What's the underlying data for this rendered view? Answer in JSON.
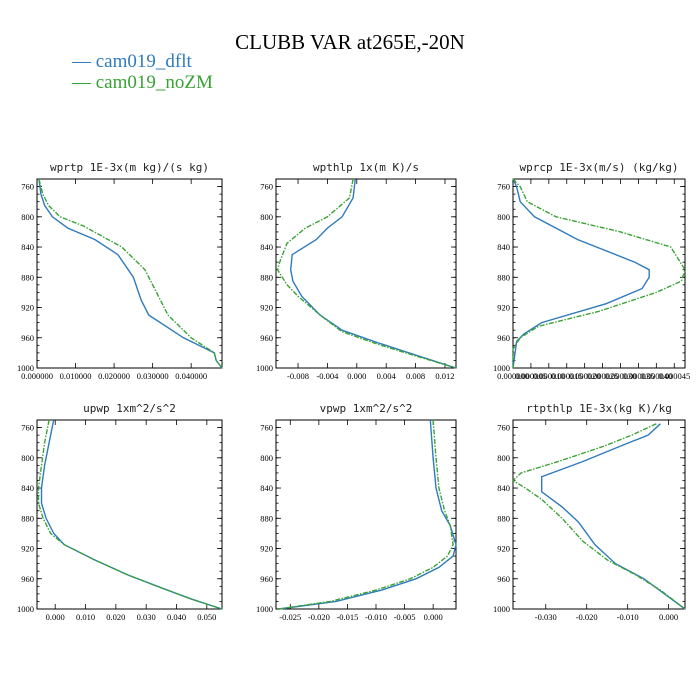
{
  "title": "CLUBB VAR at265E,-20N",
  "legend": [
    {
      "name": "cam019_dflt",
      "color": "#2f7bbd"
    },
    {
      "name": "cam019_noZM",
      "color": "#3aa335"
    }
  ],
  "chart_data": [
    {
      "type": "line",
      "title": "wprtp  1E-3x(m kg)/(s kg)",
      "xlim": [
        0.0,
        0.048
      ],
      "ylim": [
        1000,
        750
      ],
      "y_inverted": true,
      "xticks": [
        0.0,
        0.01,
        0.02,
        0.03,
        0.04
      ],
      "xtick_labels": [
        "0.000000",
        "0.010000",
        "0.020000",
        "0.030000",
        "0.040000"
      ],
      "yticks": [
        760,
        800,
        840,
        880,
        920,
        960,
        1000
      ],
      "series": [
        {
          "name": "cam019_dflt",
          "points": [
            [
              0.0005,
              750
            ],
            [
              0.001,
              770
            ],
            [
              0.002,
              785
            ],
            [
              0.004,
              800
            ],
            [
              0.008,
              815
            ],
            [
              0.015,
              830
            ],
            [
              0.021,
              850
            ],
            [
              0.025,
              880
            ],
            [
              0.027,
              910
            ],
            [
              0.029,
              930
            ],
            [
              0.038,
              960
            ],
            [
              0.046,
              980
            ],
            [
              0.0465,
              990
            ],
            [
              0.048,
              1000
            ]
          ]
        },
        {
          "name": "cam019_noZM",
          "points": [
            [
              0.0005,
              750
            ],
            [
              0.0015,
              770
            ],
            [
              0.003,
              785
            ],
            [
              0.006,
              800
            ],
            [
              0.012,
              812
            ],
            [
              0.022,
              840
            ],
            [
              0.028,
              870
            ],
            [
              0.031,
              900
            ],
            [
              0.034,
              930
            ],
            [
              0.04,
              960
            ],
            [
              0.046,
              980
            ],
            [
              0.0465,
              990
            ],
            [
              0.048,
              1000
            ]
          ]
        }
      ]
    },
    {
      "type": "line",
      "title": "wpthlp  1x(m K)/s",
      "xlim": [
        -0.011,
        0.0135
      ],
      "ylim": [
        1000,
        750
      ],
      "y_inverted": true,
      "xticks": [
        -0.008,
        -0.004,
        0.0,
        0.004,
        0.008,
        0.012
      ],
      "xtick_labels": [
        "-0.008",
        "-0.004",
        "0.000",
        "0.004",
        "0.008",
        "0.012"
      ],
      "yticks": [
        760,
        800,
        840,
        880,
        920,
        960,
        1000
      ],
      "series": [
        {
          "name": "cam019_dflt",
          "points": [
            [
              -0.0002,
              750
            ],
            [
              -0.0005,
              775
            ],
            [
              -0.002,
              800
            ],
            [
              -0.004,
              815
            ],
            [
              -0.0055,
              830
            ],
            [
              -0.0088,
              850
            ],
            [
              -0.009,
              870
            ],
            [
              -0.0087,
              885
            ],
            [
              -0.0075,
              905
            ],
            [
              -0.005,
              930
            ],
            [
              -0.002,
              950
            ],
            [
              0.003,
              967
            ],
            [
              0.008,
              983
            ],
            [
              0.0135,
              1000
            ]
          ]
        },
        {
          "name": "cam019_noZM",
          "points": [
            [
              -0.0005,
              750
            ],
            [
              -0.001,
              775
            ],
            [
              -0.004,
              800
            ],
            [
              -0.007,
              815
            ],
            [
              -0.0095,
              835
            ],
            [
              -0.0105,
              860
            ],
            [
              -0.0108,
              870
            ],
            [
              -0.0095,
              890
            ],
            [
              -0.008,
              905
            ],
            [
              -0.005,
              930
            ],
            [
              -0.002,
              952
            ],
            [
              0.003,
              969
            ],
            [
              0.008,
              984
            ],
            [
              0.0135,
              1000
            ]
          ]
        }
      ]
    },
    {
      "type": "line",
      "title": "wprcp  1E-3x(m/s) (kg/kg)",
      "xlim": [
        0.0,
        4.8e-05
      ],
      "ylim": [
        1000,
        750
      ],
      "y_inverted": true,
      "xticks": [
        0.0,
        5e-06,
        1e-05,
        1.5e-05,
        2e-05,
        2.5e-05,
        3e-05,
        3.5e-05,
        4e-05,
        4.5e-05
      ],
      "xtick_labels": [
        "0.000000",
        "0.000005",
        "0.000010",
        "0.000015",
        "0.000020",
        "0.000025",
        "0.000030",
        "0.000035",
        "0.000040",
        "0.000045"
      ],
      "yticks": [
        760,
        800,
        840,
        880,
        920,
        960,
        1000
      ],
      "series": [
        {
          "name": "cam019_dflt",
          "points": [
            [
              0.0,
              750
            ],
            [
              1e-06,
              760
            ],
            [
              2e-06,
              780
            ],
            [
              6e-06,
              800
            ],
            [
              1.8e-05,
              830
            ],
            [
              3.4e-05,
              860
            ],
            [
              3.8e-05,
              870
            ],
            [
              3.8e-05,
              880
            ],
            [
              3.6e-05,
              895
            ],
            [
              2.6e-05,
              915
            ],
            [
              8e-06,
              940
            ],
            [
              3e-06,
              955
            ],
            [
              1e-06,
              965
            ],
            [
              0.0,
              1000
            ]
          ]
        },
        {
          "name": "cam019_noZM",
          "points": [
            [
              0.0,
              750
            ],
            [
              2e-06,
              760
            ],
            [
              4e-06,
              780
            ],
            [
              1.2e-05,
              800
            ],
            [
              3e-05,
              820
            ],
            [
              4.4e-05,
              840
            ],
            [
              4.8e-05,
              870
            ],
            [
              4.7e-05,
              885
            ],
            [
              4e-05,
              900
            ],
            [
              2.4e-05,
              925
            ],
            [
              7e-06,
              945
            ],
            [
              2e-06,
              960
            ],
            [
              0.0,
              975
            ],
            [
              0.0,
              1000
            ]
          ]
        }
      ]
    },
    {
      "type": "line",
      "title": "upwp  1xm^2/s^2",
      "xlim": [
        -0.006,
        0.055
      ],
      "ylim": [
        1000,
        750
      ],
      "y_inverted": true,
      "xticks": [
        0.0,
        0.01,
        0.02,
        0.03,
        0.04,
        0.05
      ],
      "xtick_labels": [
        "0.000",
        "0.010",
        "0.020",
        "0.030",
        "0.040",
        "0.050"
      ],
      "yticks": [
        760,
        800,
        840,
        880,
        920,
        960,
        1000
      ],
      "series": [
        {
          "name": "cam019_dflt",
          "points": [
            [
              -0.0005,
              750
            ],
            [
              -0.002,
              780
            ],
            [
              -0.0035,
              810
            ],
            [
              -0.0045,
              840
            ],
            [
              -0.0045,
              860
            ],
            [
              -0.003,
              880
            ],
            [
              -0.0005,
              900
            ],
            [
              0.003,
              915
            ],
            [
              0.013,
              935
            ],
            [
              0.024,
              955
            ],
            [
              0.035,
              972
            ],
            [
              0.045,
              987
            ],
            [
              0.055,
              1000
            ]
          ]
        },
        {
          "name": "cam019_noZM",
          "points": [
            [
              -0.002,
              750
            ],
            [
              -0.0035,
              780
            ],
            [
              -0.0045,
              810
            ],
            [
              -0.0055,
              840
            ],
            [
              -0.0055,
              860
            ],
            [
              -0.004,
              880
            ],
            [
              -0.0015,
              900
            ],
            [
              0.003,
              915
            ],
            [
              0.013,
              935
            ],
            [
              0.024,
              955
            ],
            [
              0.035,
              972
            ],
            [
              0.045,
              987
            ],
            [
              0.055,
              1000
            ]
          ]
        }
      ]
    },
    {
      "type": "line",
      "title": "vpwp  1xm^2/s^2",
      "xlim": [
        -0.0275,
        0.004
      ],
      "ylim": [
        1000,
        750
      ],
      "y_inverted": true,
      "xticks": [
        -0.025,
        -0.02,
        -0.015,
        -0.01,
        -0.005,
        0.0
      ],
      "xtick_labels": [
        "-0.025",
        "-0.020",
        "-0.015",
        "-0.010",
        "-0.005",
        "0.000"
      ],
      "yticks": [
        760,
        800,
        840,
        880,
        920,
        960,
        1000
      ],
      "series": [
        {
          "name": "cam019_dflt",
          "points": [
            [
              -0.0005,
              750
            ],
            [
              0.0,
              800
            ],
            [
              0.0005,
              840
            ],
            [
              0.0015,
              870
            ],
            [
              0.003,
              890
            ],
            [
              0.004,
              915
            ],
            [
              0.0035,
              930
            ],
            [
              0.001,
              945
            ],
            [
              -0.003,
              960
            ],
            [
              -0.009,
              975
            ],
            [
              -0.017,
              990
            ],
            [
              -0.027,
              1000
            ]
          ]
        },
        {
          "name": "cam019_noZM",
          "points": [
            [
              0.0,
              750
            ],
            [
              0.0005,
              800
            ],
            [
              0.001,
              840
            ],
            [
              0.002,
              870
            ],
            [
              0.003,
              890
            ],
            [
              0.0035,
              915
            ],
            [
              0.0025,
              930
            ],
            [
              0.0,
              945
            ],
            [
              -0.004,
              960
            ],
            [
              -0.01,
              975
            ],
            [
              -0.018,
              990
            ],
            [
              -0.027,
              1000
            ]
          ]
        }
      ]
    },
    {
      "type": "line",
      "title": "rtpthlp  1E-3x(kg K)/kg",
      "xlim": [
        -0.038,
        0.004
      ],
      "ylim": [
        1000,
        750
      ],
      "y_inverted": true,
      "xticks": [
        -0.03,
        -0.02,
        -0.01,
        0.0
      ],
      "xtick_labels": [
        "-0.030",
        "-0.020",
        "-0.010",
        "0.000"
      ],
      "yticks": [
        760,
        800,
        840,
        880,
        920,
        960,
        1000
      ],
      "series": [
        {
          "name": "cam019_dflt",
          "points": [
            [
              -0.002,
              755
            ],
            [
              -0.005,
              770
            ],
            [
              -0.012,
              785
            ],
            [
              -0.021,
              805
            ],
            [
              -0.031,
              825
            ],
            [
              -0.031,
              845
            ],
            [
              -0.026,
              865
            ],
            [
              -0.022,
              885
            ],
            [
              -0.018,
              915
            ],
            [
              -0.013,
              940
            ],
            [
              -0.006,
              960
            ],
            [
              -0.001,
              980
            ],
            [
              0.004,
              1000
            ]
          ]
        },
        {
          "name": "cam019_noZM",
          "points": [
            [
              -0.003,
              755
            ],
            [
              -0.009,
              770
            ],
            [
              -0.016,
              785
            ],
            [
              -0.027,
              805
            ],
            [
              -0.036,
              820
            ],
            [
              -0.038,
              830
            ],
            [
              -0.035,
              840
            ],
            [
              -0.031,
              855
            ],
            [
              -0.026,
              880
            ],
            [
              -0.021,
              910
            ],
            [
              -0.015,
              935
            ],
            [
              -0.008,
              955
            ],
            [
              -0.002,
              975
            ],
            [
              0.004,
              1000
            ]
          ]
        }
      ]
    }
  ]
}
